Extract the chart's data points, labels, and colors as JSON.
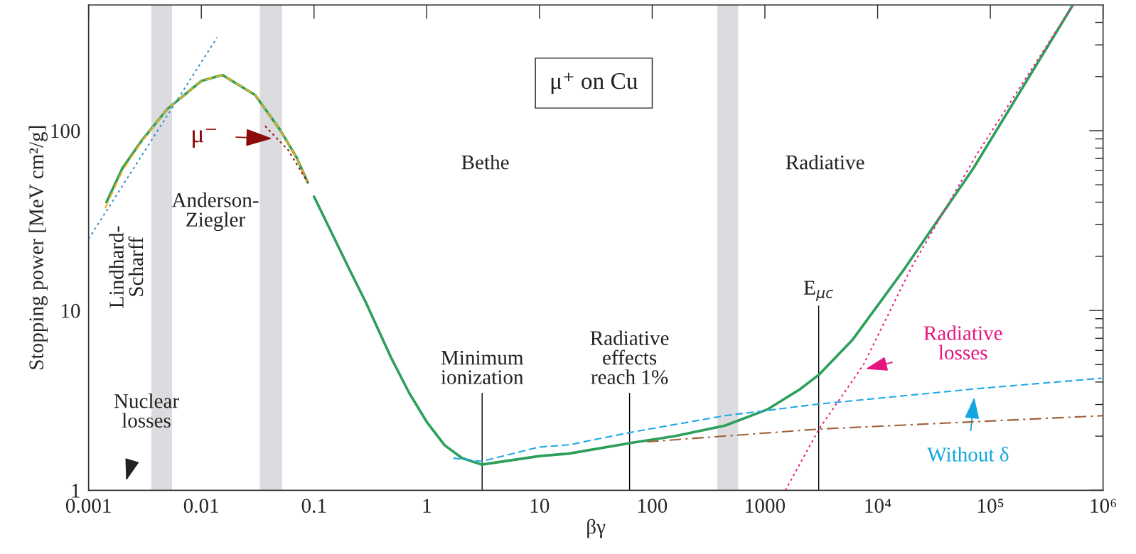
{
  "chart_data": {
    "type": "line",
    "xlabel": "βγ",
    "ylabel": "Stopping power [MeV cm²/g]",
    "log": "xy",
    "grid": false,
    "legend": false,
    "xlim": [
      0.001,
      1000000
    ],
    "ylim": [
      1,
      500
    ],
    "xticks": [
      0.001,
      0.01,
      0.1,
      1,
      10,
      100,
      1000,
      {
        "value": 10000,
        "label": "10⁴"
      },
      {
        "value": 100000,
        "label": "10⁵"
      },
      {
        "value": 1000000,
        "label": "10⁶"
      }
    ],
    "yticks": [
      1,
      {
        "value": 2,
        "label": null
      },
      {
        "value": 3,
        "label": null
      },
      {
        "value": 4,
        "label": null
      },
      {
        "value": 5,
        "label": null
      },
      {
        "value": 6,
        "label": null
      },
      {
        "value": 7,
        "label": null
      },
      {
        "value": 8,
        "label": null
      },
      {
        "value": 9,
        "label": null
      },
      10,
      {
        "value": 20,
        "label": null
      },
      {
        "value": 30,
        "label": null
      },
      {
        "value": 40,
        "label": null
      },
      {
        "value": 50,
        "label": null
      },
      {
        "value": 60,
        "label": null
      },
      {
        "value": 70,
        "label": null
      },
      {
        "value": 80,
        "label": null
      },
      {
        "value": 90,
        "label": null
      },
      100,
      {
        "value": 200,
        "label": null
      },
      {
        "value": 300,
        "label": null
      },
      {
        "value": 400,
        "label": null
      }
    ],
    "series": [
      {
        "color": "#2ca05a",
        "line_style": "solid",
        "x": [
          0.00144,
          0.002,
          0.003,
          0.005,
          0.01,
          0.0154,
          0.03,
          0.05,
          0.07,
          0.088,
          0.095,
          0.1,
          0.21,
          0.29,
          0.48,
          0.7,
          1.0,
          1.44,
          2.06,
          3.07,
          10,
          18.2,
          67,
          159,
          442,
          1057,
          2028,
          3023,
          6025,
          17260,
          71000,
          540000
        ],
        "values": [
          40,
          62,
          89,
          132,
          189,
          204,
          158,
          101,
          71,
          51.5,
          null,
          43,
          16.5,
          11,
          5.5,
          3.47,
          2.4,
          1.78,
          1.51,
          1.39,
          1.55,
          1.6,
          1.84,
          2.0,
          2.29,
          2.82,
          3.63,
          4.4,
          6.9,
          17,
          62,
          500
        ]
      },
      {
        "color": "#f0b020",
        "line_style": "dashed",
        "x": [
          0.0014,
          0.002,
          0.003,
          0.005,
          0.01,
          0.0154,
          0.03,
          0.05,
          0.07,
          0.088
        ],
        "values": [
          37,
          60,
          88,
          132,
          189,
          204,
          158,
          101,
          71,
          51.5
        ]
      },
      {
        "color": "#3a8fc8",
        "line_style": "dotted",
        "x": [
          0.001,
          0.0138
        ],
        "values": [
          25,
          330
        ]
      },
      {
        "color": "#a01010",
        "line_style": "dotted",
        "x": [
          0.0368,
          0.059,
          0.088
        ],
        "values": [
          106,
          78,
          51.5
        ]
      },
      {
        "color": "#20a8e8",
        "line_style": "dashed",
        "x": [
          1.72,
          3.07,
          10,
          18.2,
          67,
          442,
          3023,
          71000,
          970000
        ],
        "values": [
          1.51,
          1.45,
          1.74,
          1.79,
          2.11,
          2.6,
          3.02,
          3.66,
          4.2
        ]
      },
      {
        "color": "#a0603a",
        "line_style": "dashdot",
        "x": [
          90,
          3023,
          1000000
        ],
        "values": [
          1.86,
          2.19,
          2.6
        ]
      },
      {
        "color": "#f0208a",
        "line_style": "dotted",
        "x": [
          1520,
          3023,
          7500,
          20000,
          76000,
          540000
        ],
        "values": [
          1,
          2.19,
          5.0,
          17.4,
          74,
          500
        ]
      }
    ],
    "bands": [
      {
        "axis": "x",
        "from": 0.0036,
        "to": 0.0055,
        "color": "#dcdce0"
      },
      {
        "axis": "x",
        "from": 0.033,
        "to": 0.052,
        "color": "#dcdce0"
      },
      {
        "axis": "x",
        "from": 378,
        "to": 579,
        "color": "#dcdce0"
      }
    ],
    "ref_lines": [
      {
        "axis": "x",
        "value": 3.1,
        "label": "Minimum\nionization",
        "color": "#000000"
      },
      {
        "axis": "x",
        "value": 63,
        "label": "Radiative\neffects\nreach 1%",
        "color": "#000000"
      },
      {
        "axis": "x",
        "value": 3000,
        "label": "E$_{μc}$",
        "color": "#000000"
      }
    ],
    "annotations": [
      "Lindhard-\nScharff",
      "Anderson-\nZiegler",
      "μ⁻",
      "Bethe",
      "μ⁺ on Cu",
      "Radiative",
      "Nuclear\nlosses",
      "Radiative\nlosses",
      "Without δ"
    ]
  }
}
